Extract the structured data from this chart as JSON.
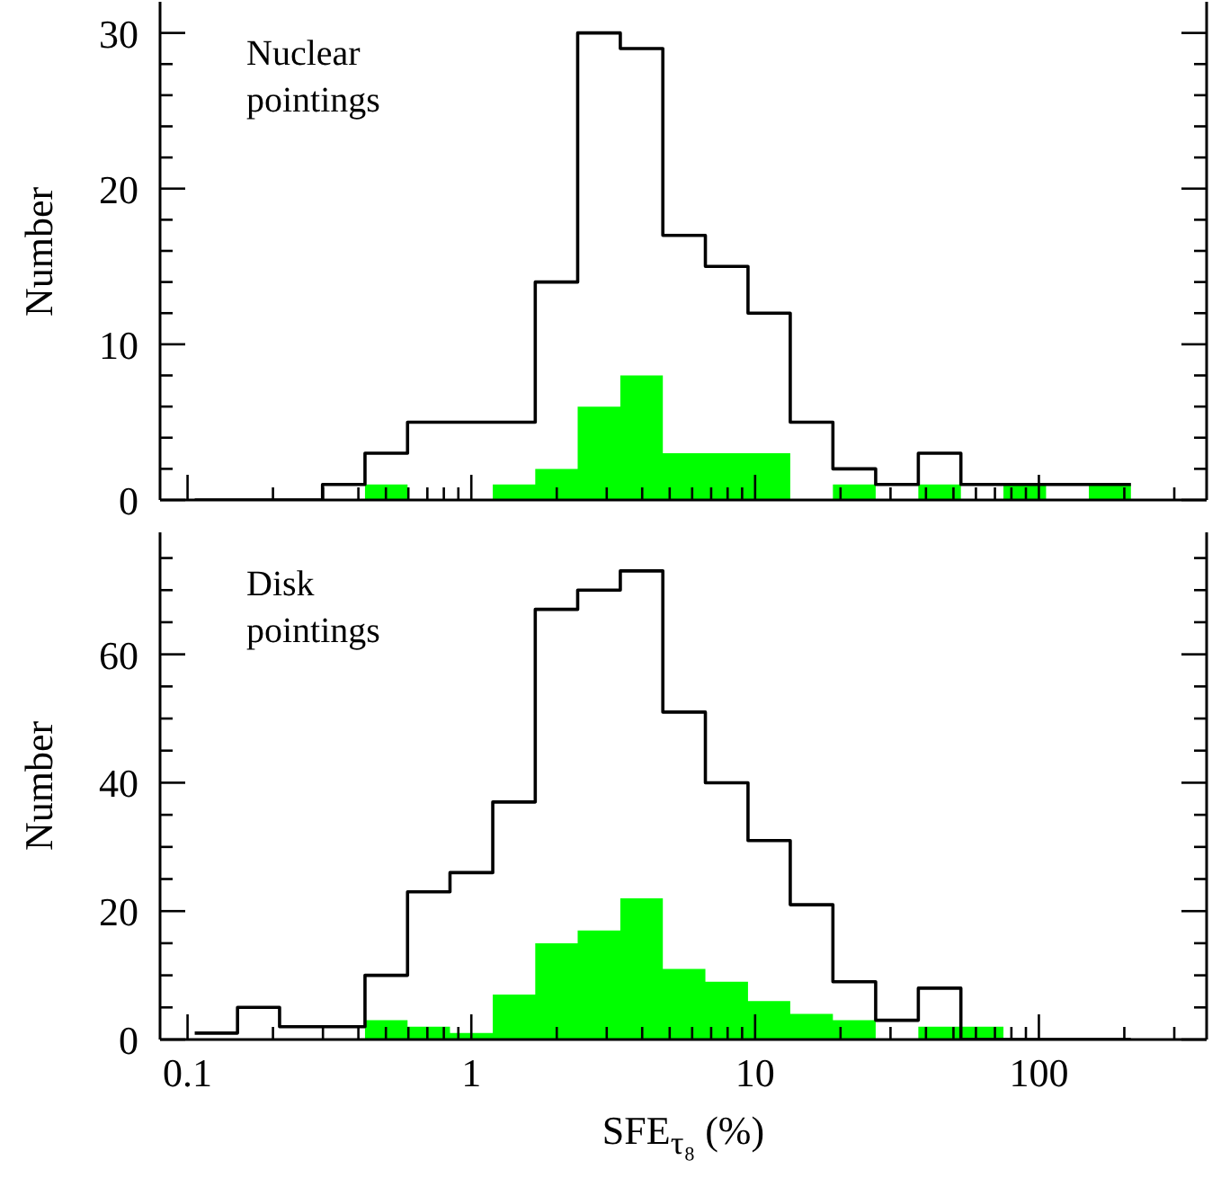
{
  "chart_data": [
    {
      "type": "histogram",
      "ylabel": "Number",
      "annotations": [
        "Nuclear pointings"
      ],
      "log": "x",
      "tick_labels": "y",
      "grid": false,
      "legend": false,
      "bins": [
        0.106,
        0.15,
        0.211,
        0.299,
        0.422,
        0.596,
        0.841,
        1.19,
        1.68,
        2.37,
        3.35,
        4.73,
        6.68,
        9.44,
        13.3,
        18.8,
        26.6,
        37.6,
        53.1,
        75.0,
        106,
        150,
        211
      ],
      "series": [
        {
          "color": "#00ff00",
          "values": [
            0,
            0,
            0,
            0,
            1,
            0,
            0,
            1,
            2,
            6,
            8,
            3,
            3,
            3,
            0,
            1,
            0,
            1,
            0,
            1,
            0,
            1
          ]
        },
        {
          "color": "#000000",
          "line_style": "solid",
          "values": [
            0,
            0,
            0,
            1,
            3,
            5,
            5,
            5,
            14,
            30,
            29,
            17,
            15,
            12,
            5,
            2,
            1,
            3,
            1,
            1,
            1,
            1
          ]
        }
      ],
      "xlim": [
        0.08,
        390
      ],
      "xticks": [
        0.1,
        {
          "value": 0.2,
          "label": null
        },
        {
          "value": 0.3,
          "label": null
        },
        {
          "value": 0.4,
          "label": null
        },
        {
          "value": 0.5,
          "label": null
        },
        {
          "value": 0.6,
          "label": null
        },
        {
          "value": 0.7,
          "label": null
        },
        {
          "value": 0.8,
          "label": null
        },
        {
          "value": 0.9,
          "label": null
        },
        1,
        {
          "value": 2,
          "label": null
        },
        {
          "value": 3,
          "label": null
        },
        {
          "value": 4,
          "label": null
        },
        {
          "value": 5,
          "label": null
        },
        {
          "value": 6,
          "label": null
        },
        {
          "value": 7,
          "label": null
        },
        {
          "value": 8,
          "label": null
        },
        {
          "value": 9,
          "label": null
        },
        10,
        {
          "value": 20,
          "label": null
        },
        {
          "value": 30,
          "label": null
        },
        {
          "value": 40,
          "label": null
        },
        {
          "value": 50,
          "label": null
        },
        {
          "value": 60,
          "label": null
        },
        {
          "value": 70,
          "label": null
        },
        {
          "value": 80,
          "label": null
        },
        {
          "value": 90,
          "label": null
        },
        100,
        {
          "value": 200,
          "label": null
        },
        {
          "value": 300,
          "label": null
        }
      ],
      "ylim": [
        0,
        32
      ],
      "yticks": [
        0,
        {
          "value": 2,
          "label": null
        },
        {
          "value": 4,
          "label": null
        },
        {
          "value": 6,
          "label": null
        },
        {
          "value": 8,
          "label": null
        },
        10,
        {
          "value": 12,
          "label": null
        },
        {
          "value": 14,
          "label": null
        },
        {
          "value": 16,
          "label": null
        },
        {
          "value": 18,
          "label": null
        },
        20,
        {
          "value": 22,
          "label": null
        },
        {
          "value": 24,
          "label": null
        },
        {
          "value": 26,
          "label": null
        },
        {
          "value": 28,
          "label": null
        },
        30
      ]
    },
    {
      "type": "histogram",
      "xlabel": "SFE$_{τ₈}$ (%)",
      "ylabel": "Number",
      "annotations": [
        "Disk pointings"
      ],
      "log": "x",
      "grid": false,
      "legend": false,
      "bins": [
        0.106,
        0.15,
        0.211,
        0.299,
        0.422,
        0.596,
        0.841,
        1.19,
        1.68,
        2.37,
        3.35,
        4.73,
        6.68,
        9.44,
        13.3,
        18.8,
        26.6,
        37.6,
        53.1,
        75.0,
        106,
        150,
        211
      ],
      "series": [
        {
          "color": "#00ff00",
          "values": [
            0,
            0,
            0,
            0,
            3,
            2,
            1,
            7,
            15,
            17,
            22,
            11,
            9,
            6,
            4,
            3,
            0,
            2,
            2,
            0,
            0,
            0
          ]
        },
        {
          "color": "#000000",
          "line_style": "solid",
          "values": [
            1,
            5,
            2,
            2,
            10,
            23,
            26,
            37,
            67,
            70,
            73,
            51,
            40,
            31,
            21,
            9,
            3,
            8,
            0,
            0,
            0,
            0
          ]
        }
      ],
      "xlim": [
        0.08,
        390
      ],
      "xticks": [
        0.1,
        {
          "value": 0.2,
          "label": null
        },
        {
          "value": 0.3,
          "label": null
        },
        {
          "value": 0.4,
          "label": null
        },
        {
          "value": 0.5,
          "label": null
        },
        {
          "value": 0.6,
          "label": null
        },
        {
          "value": 0.7,
          "label": null
        },
        {
          "value": 0.8,
          "label": null
        },
        {
          "value": 0.9,
          "label": null
        },
        1,
        {
          "value": 2,
          "label": null
        },
        {
          "value": 3,
          "label": null
        },
        {
          "value": 4,
          "label": null
        },
        {
          "value": 5,
          "label": null
        },
        {
          "value": 6,
          "label": null
        },
        {
          "value": 7,
          "label": null
        },
        {
          "value": 8,
          "label": null
        },
        {
          "value": 9,
          "label": null
        },
        10,
        {
          "value": 20,
          "label": null
        },
        {
          "value": 30,
          "label": null
        },
        {
          "value": 40,
          "label": null
        },
        {
          "value": 50,
          "label": null
        },
        {
          "value": 60,
          "label": null
        },
        {
          "value": 70,
          "label": null
        },
        {
          "value": 80,
          "label": null
        },
        {
          "value": 90,
          "label": null
        },
        100,
        {
          "value": 200,
          "label": null
        },
        {
          "value": 300,
          "label": null
        }
      ],
      "ylim": [
        0,
        79
      ],
      "yticks": [
        0,
        {
          "value": 5,
          "label": null
        },
        {
          "value": 10,
          "label": null
        },
        {
          "value": 15,
          "label": null
        },
        20,
        {
          "value": 25,
          "label": null
        },
        {
          "value": 30,
          "label": null
        },
        {
          "value": 35,
          "label": null
        },
        40,
        {
          "value": 45,
          "label": null
        },
        {
          "value": 50,
          "label": null
        },
        {
          "value": 55,
          "label": null
        },
        60,
        {
          "value": 65,
          "label": null
        },
        {
          "value": 70,
          "label": null
        },
        {
          "value": 75,
          "label": null
        }
      ]
    }
  ]
}
